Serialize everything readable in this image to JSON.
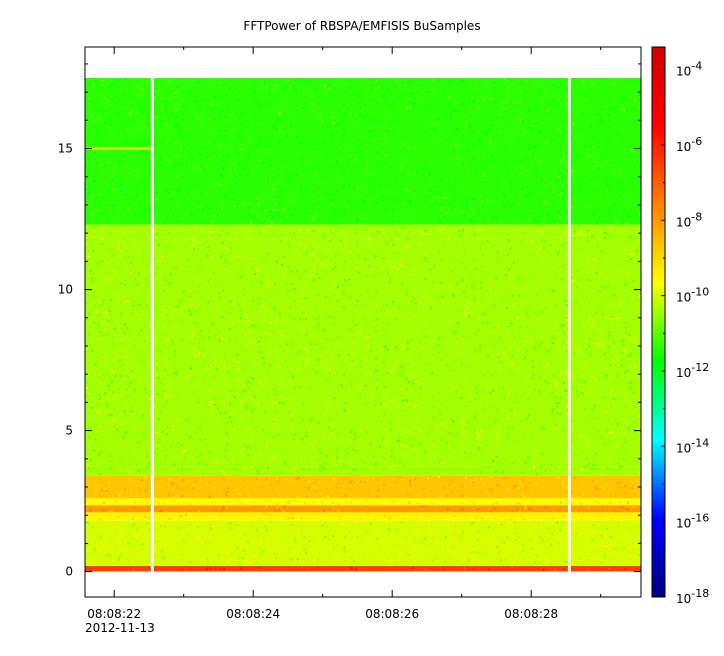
{
  "chart_data": {
    "type": "heatmap",
    "title": "FFTPower of RBSPA/EMFISIS  BuSamples",
    "x_axis": {
      "unit": "time",
      "start": "08:08:21.58",
      "end": "08:08:29.58",
      "major_ticks": [
        "08:08:22",
        "08:08:24",
        "08:08:26",
        "08:08:28"
      ],
      "minor_ticks": [
        "08:08:23",
        "08:08:25",
        "08:08:27",
        "08:08:29"
      ],
      "date_label": "2012-11-13"
    },
    "y_axis": {
      "range": [
        -0.9,
        18.6
      ],
      "major_ticks": [
        "0",
        "5",
        "10",
        "15"
      ],
      "minor_tick_step": 1
    },
    "colorbar": {
      "scale": "log",
      "range_exp": [
        -18,
        -3.4
      ],
      "tick_exponents": [
        "-18",
        "-16",
        "-14",
        "-12",
        "-10",
        "-8",
        "-6",
        "-4"
      ],
      "tick_base": "10",
      "colormap": [
        "#00007f",
        "#0000ff",
        "#00ffff",
        "#00ff00",
        "#ffff00",
        "#ff8000",
        "#ff0000",
        "#d00000"
      ]
    },
    "data_extent": {
      "y_min": 0,
      "y_max": 17.5
    },
    "gaps": [
      "08:08:22.55",
      "08:08:28.55"
    ],
    "bands": [
      {
        "y_from": 0,
        "y_to": 0.2,
        "log_power": -6.5
      },
      {
        "y_from": 0.2,
        "y_to": 1.8,
        "log_power": -10.0
      },
      {
        "y_from": 1.8,
        "y_to": 2.1,
        "log_power": -9.5
      },
      {
        "y_from": 2.1,
        "y_to": 2.35,
        "log_power": -8.0
      },
      {
        "y_from": 2.35,
        "y_to": 2.6,
        "log_power": -9.6
      },
      {
        "y_from": 2.6,
        "y_to": 3.4,
        "log_power": -8.7
      },
      {
        "y_from": 3.4,
        "y_to": 12.3,
        "log_power": -10.4
      },
      {
        "y_from": 12.3,
        "y_to": 17.5,
        "log_power": -11.4
      }
    ],
    "lines": [
      {
        "y": 15.0,
        "log_power": -9.3,
        "x_from": "08:08:21.58",
        "x_to": "08:08:22.55"
      }
    ]
  }
}
